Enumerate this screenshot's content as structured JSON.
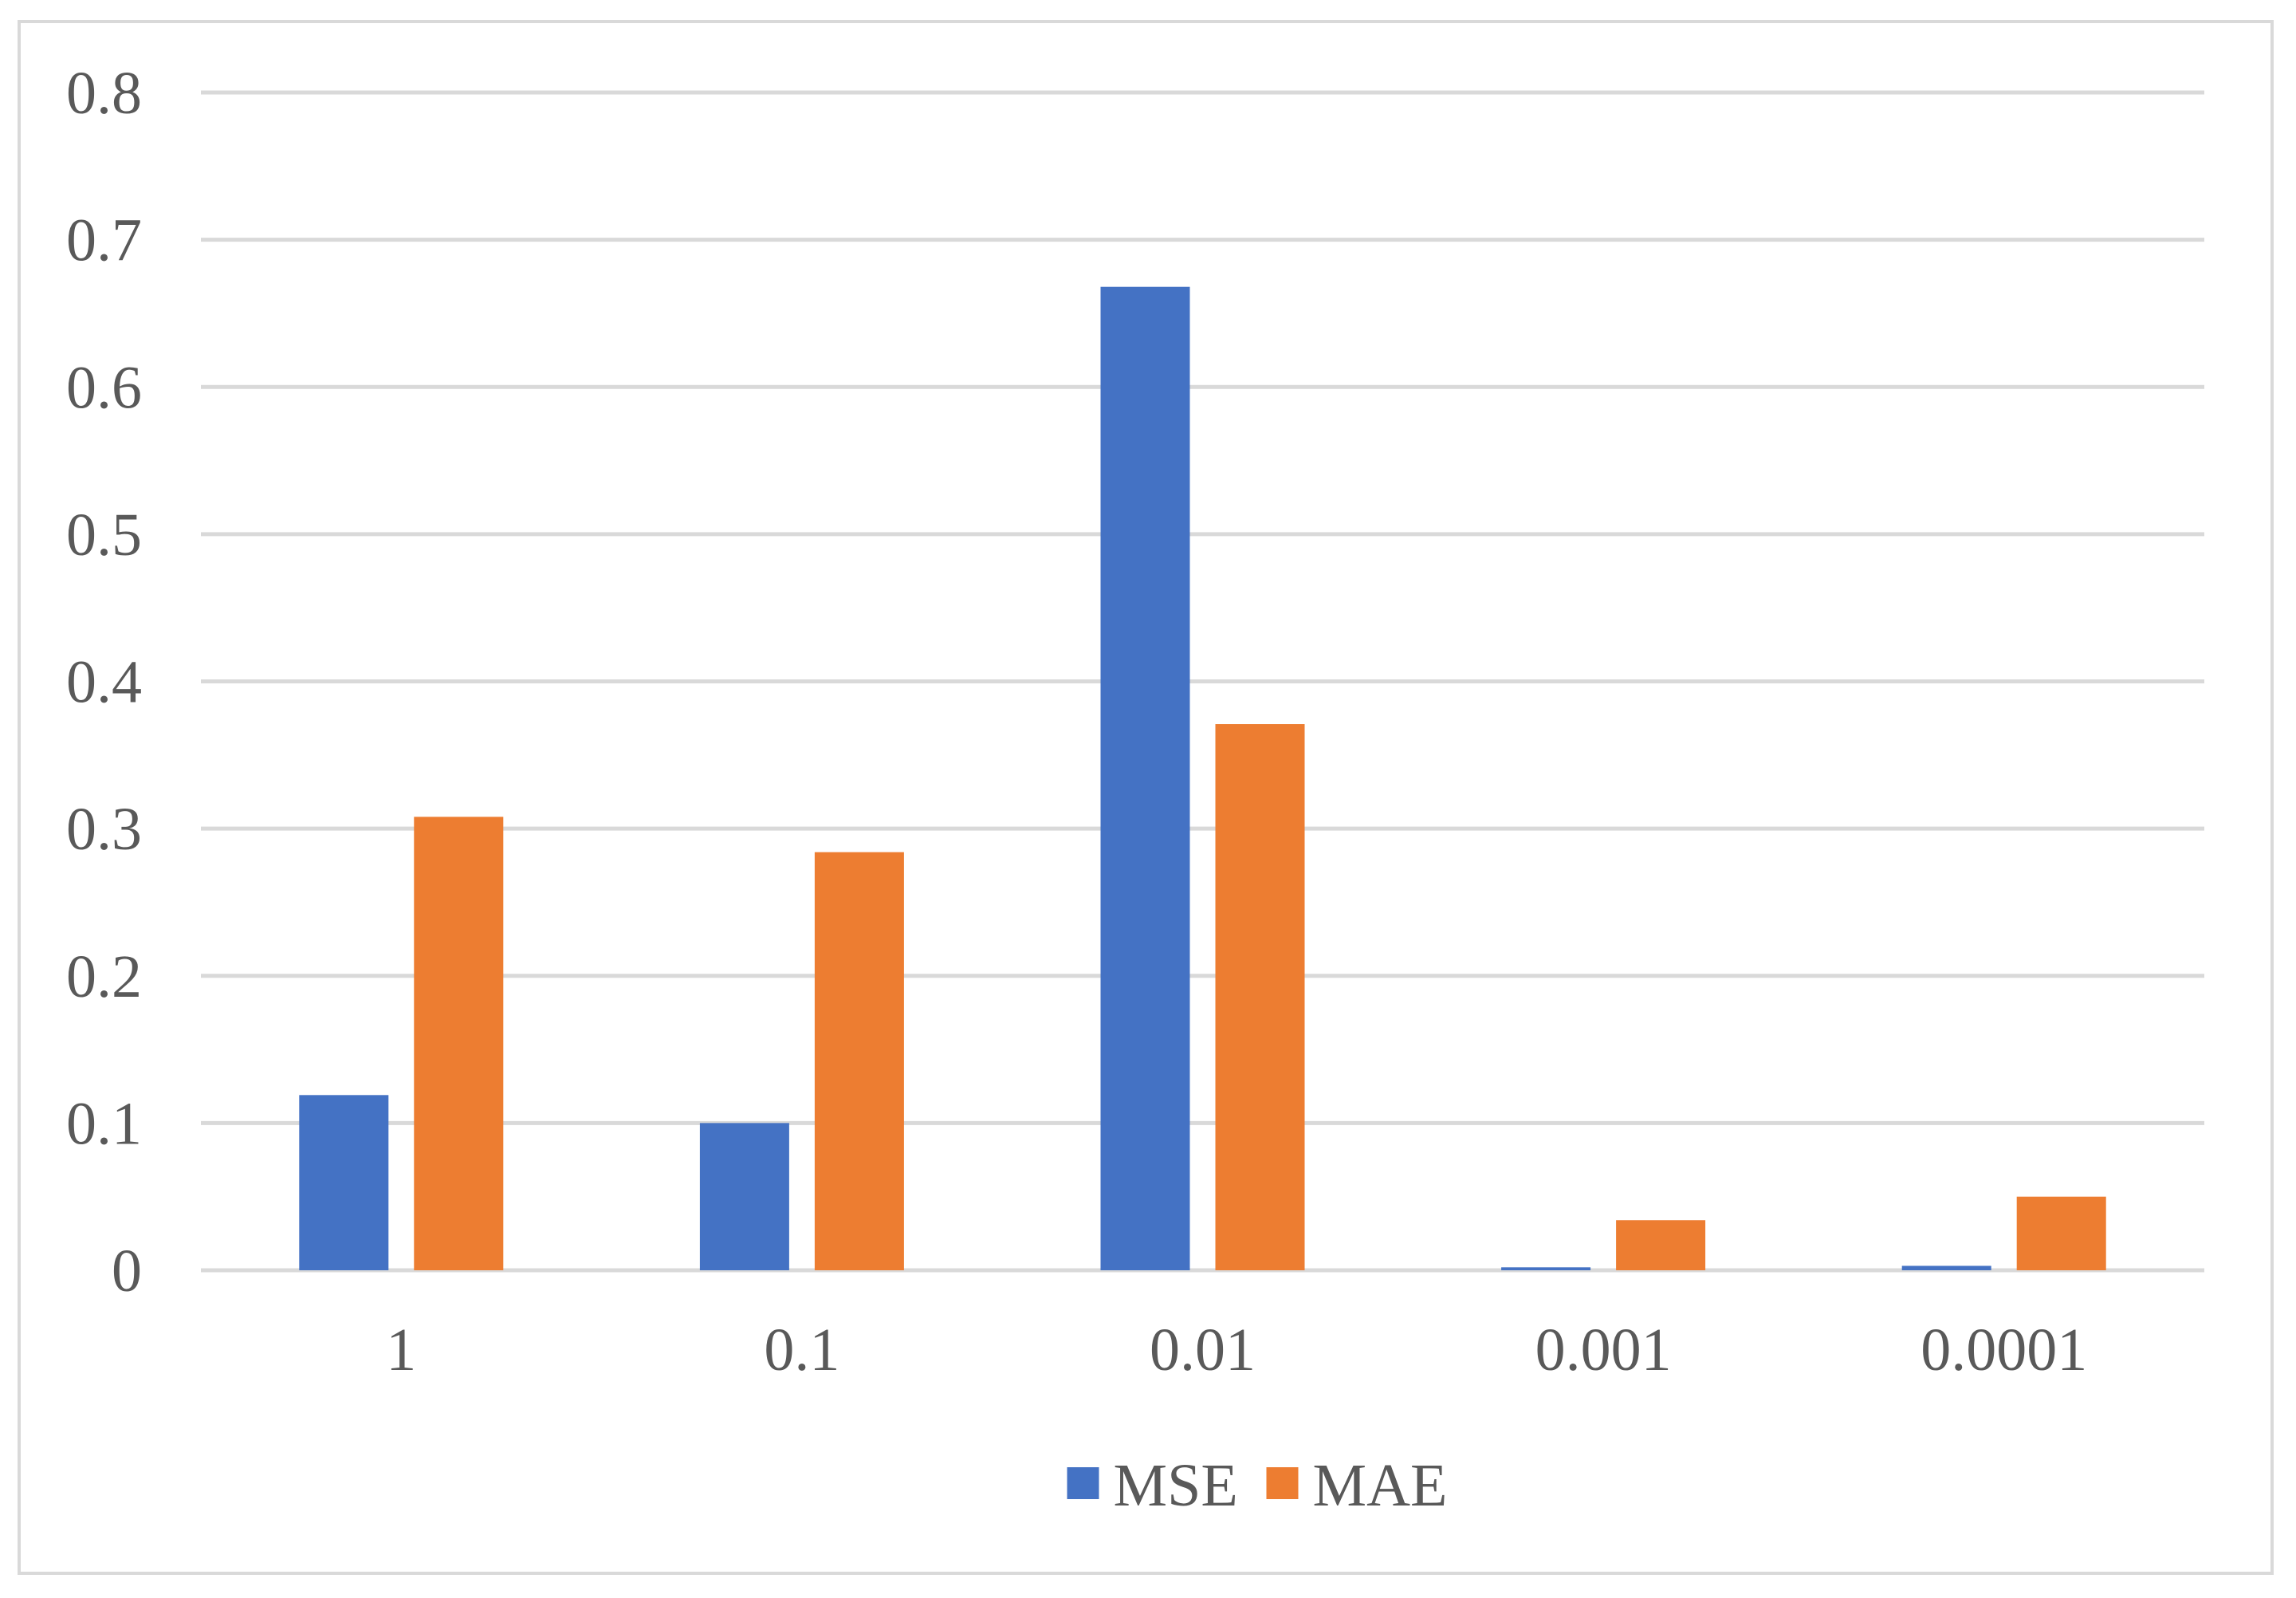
{
  "chart_data": {
    "type": "bar",
    "categories": [
      "1",
      "0.1",
      "0.01",
      "0.001",
      "0.0001"
    ],
    "series": [
      {
        "name": "MSE",
        "color": "#4472C4",
        "values": [
          0.119,
          0.1,
          0.668,
          0.002,
          0.003
        ]
      },
      {
        "name": "MAE",
        "color": "#ED7D31",
        "values": [
          0.308,
          0.284,
          0.371,
          0.034,
          0.05
        ]
      }
    ],
    "y_ticks": [
      "0",
      "0.1",
      "0.2",
      "0.3",
      "0.4",
      "0.5",
      "0.6",
      "0.7",
      "0.8"
    ],
    "ylim": [
      0,
      0.8
    ],
    "grid": true,
    "legend_position": "bottom"
  }
}
